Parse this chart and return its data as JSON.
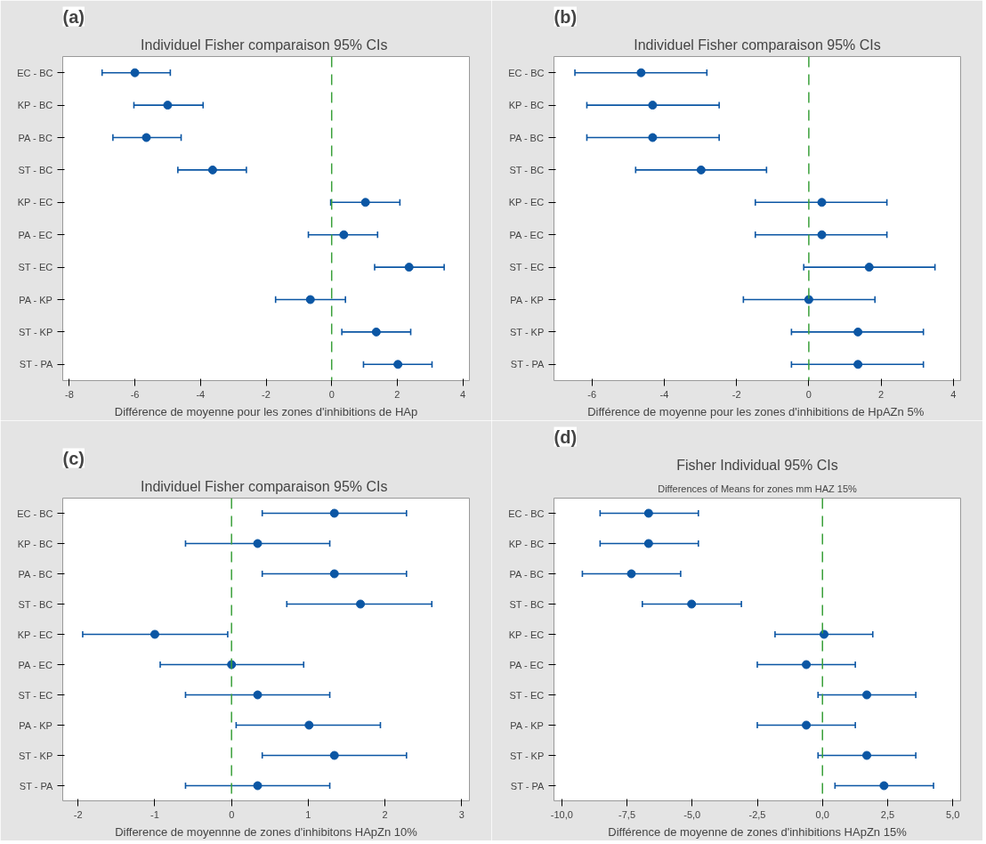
{
  "chart_data": [
    {
      "type": "scatter",
      "orientation": "horizontal",
      "title": "Individuel  Fisher comparaison 95% CIs",
      "xlabel": "Différence de moyenne pour les zones d'inhibitions de HAp",
      "annotations": [
        "(a)"
      ],
      "categories": [
        "EC - BC",
        "KP - BC",
        "PA - BC",
        "ST - BC",
        "KP - EC",
        "PA - EC",
        "ST - EC",
        "PA - KP",
        "ST - KP",
        "ST - PA"
      ],
      "series": [
        {
          "color": "#0b56a4",
          "values": [
            -6.0,
            -5.0,
            -5.65,
            -3.63,
            1.03,
            0.37,
            2.36,
            -0.65,
            1.36,
            2.02
          ],
          "errors": [
            [
              -7.0,
              -4.92
            ],
            [
              -6.03,
              -3.92
            ],
            [
              -6.67,
              -4.59
            ],
            [
              -4.69,
              -2.6
            ],
            [
              -0.03,
              2.08
            ],
            [
              -0.71,
              1.4
            ],
            [
              1.31,
              3.43
            ],
            [
              -1.71,
              0.42
            ],
            [
              0.31,
              2.41
            ],
            [
              0.97,
              3.06
            ]
          ]
        }
      ],
      "xlim": [
        -8.2,
        4.2
      ],
      "xticks": [
        -8,
        -6,
        -4,
        -2,
        0,
        2,
        4
      ],
      "grid": false,
      "marker": "circle",
      "ref_lines": [
        {
          "axis": "x",
          "value": 0,
          "color": "#3aa03a",
          "line_style": "dashed"
        }
      ]
    },
    {
      "type": "scatter",
      "orientation": "horizontal",
      "title": "Individuel Fisher comparaison 95% CIs",
      "xlabel": "Différence de moyenne  pour les zones d'inhibitions de HpAZn 5%",
      "annotations": [
        "(b)"
      ],
      "categories": [
        "EC - BC",
        "KP - BC",
        "PA - BC",
        "ST - BC",
        "KP - EC",
        "PA - EC",
        "ST - EC",
        "PA - KP",
        "ST - KP",
        "ST - PA"
      ],
      "series": [
        {
          "color": "#0b56a4",
          "values": [
            -4.64,
            -4.32,
            -4.32,
            -2.98,
            0.36,
            0.36,
            1.67,
            0.0,
            1.36,
            1.36
          ],
          "errors": [
            [
              -6.47,
              -2.82
            ],
            [
              -6.14,
              -2.48
            ],
            [
              -6.14,
              -2.48
            ],
            [
              -4.79,
              -1.17
            ],
            [
              -1.48,
              2.16
            ],
            [
              -1.48,
              2.16
            ],
            [
              -0.14,
              3.49
            ],
            [
              -1.81,
              1.83
            ],
            [
              -0.48,
              3.17
            ],
            [
              -0.48,
              3.17
            ]
          ]
        }
      ],
      "xlim": [
        -7.05,
        4.2
      ],
      "xticks": [
        -6,
        -4,
        -2,
        0,
        2,
        4
      ],
      "grid": false,
      "marker": "circle",
      "ref_lines": [
        {
          "axis": "x",
          "value": 0,
          "color": "#3aa03a",
          "line_style": "dashed"
        }
      ]
    },
    {
      "type": "scatter",
      "orientation": "horizontal",
      "title": "Individuel Fisher  comparaison 95% CIs",
      "xlabel": "Difference de moyennne de zones d'inhibitons HApZn 10%",
      "annotations": [
        "(c)"
      ],
      "categories": [
        "EC - BC",
        "KP - BC",
        "PA - BC",
        "ST - BC",
        "KP - EC",
        "PA - EC",
        "ST - EC",
        "PA - KP",
        "ST - KP",
        "ST - PA"
      ],
      "series": [
        {
          "color": "#0b56a4",
          "values": [
            1.34,
            0.34,
            1.34,
            1.68,
            -1.0,
            0.0,
            0.34,
            1.01,
            1.34,
            0.34
          ],
          "errors": [
            [
              0.4,
              2.28
            ],
            [
              -0.6,
              1.28
            ],
            [
              0.4,
              2.28
            ],
            [
              0.72,
              2.61
            ],
            [
              -1.94,
              -0.05
            ],
            [
              -0.93,
              0.94
            ],
            [
              -0.6,
              1.28
            ],
            [
              0.06,
              1.94
            ],
            [
              0.4,
              2.28
            ],
            [
              -0.6,
              1.28
            ]
          ]
        }
      ],
      "xlim": [
        -2.2,
        3.1
      ],
      "xticks": [
        -2,
        -1,
        0,
        1,
        2,
        3
      ],
      "grid": false,
      "marker": "circle",
      "ref_lines": [
        {
          "axis": "x",
          "value": 0,
          "color": "#3aa03a",
          "line_style": "dashed"
        }
      ]
    },
    {
      "type": "scatter",
      "orientation": "horizontal",
      "title": "Fisher Individual 95% CIs",
      "subtitle": "Differences of Means for zones mm HAZ 15%",
      "xlabel": "Différence de moyenne de zones d'inhibitions HApZn 15%",
      "annotations": [
        "(d)"
      ],
      "categories": [
        "EC - BC",
        "KP - BC",
        "PA - BC",
        "ST - BC",
        "KP - EC",
        "PA - EC",
        "ST - EC",
        "PA - KP",
        "ST - KP",
        "ST - PA"
      ],
      "series": [
        {
          "color": "#0b56a4",
          "values": [
            -6.67,
            -6.67,
            -7.33,
            -5.02,
            0.06,
            -0.62,
            1.7,
            -0.62,
            1.7,
            2.36
          ],
          "errors": [
            [
              -8.53,
              -4.76
            ],
            [
              -8.53,
              -4.76
            ],
            [
              -9.21,
              -5.44
            ],
            [
              -6.91,
              -3.11
            ],
            [
              -1.82,
              1.93
            ],
            [
              -2.5,
              1.26
            ],
            [
              -0.17,
              3.58
            ],
            [
              -2.5,
              1.26
            ],
            [
              -0.17,
              3.58
            ],
            [
              0.48,
              4.26
            ]
          ]
        }
      ],
      "xlim": [
        -10.3,
        5.3
      ],
      "xticks": [
        {
          "value": -10,
          "label": "-10,0"
        },
        {
          "value": -7.5,
          "label": "-7,5"
        },
        {
          "value": -5,
          "label": "-5,0"
        },
        {
          "value": -2.5,
          "label": "-2,5"
        },
        {
          "value": 0,
          "label": "0,0"
        },
        {
          "value": 2.5,
          "label": "2,5"
        },
        {
          "value": 5,
          "label": "5,0"
        }
      ],
      "grid": false,
      "marker": "circle",
      "ref_lines": [
        {
          "axis": "x",
          "value": 0,
          "color": "#3aa03a",
          "line_style": "dashed"
        }
      ]
    }
  ]
}
